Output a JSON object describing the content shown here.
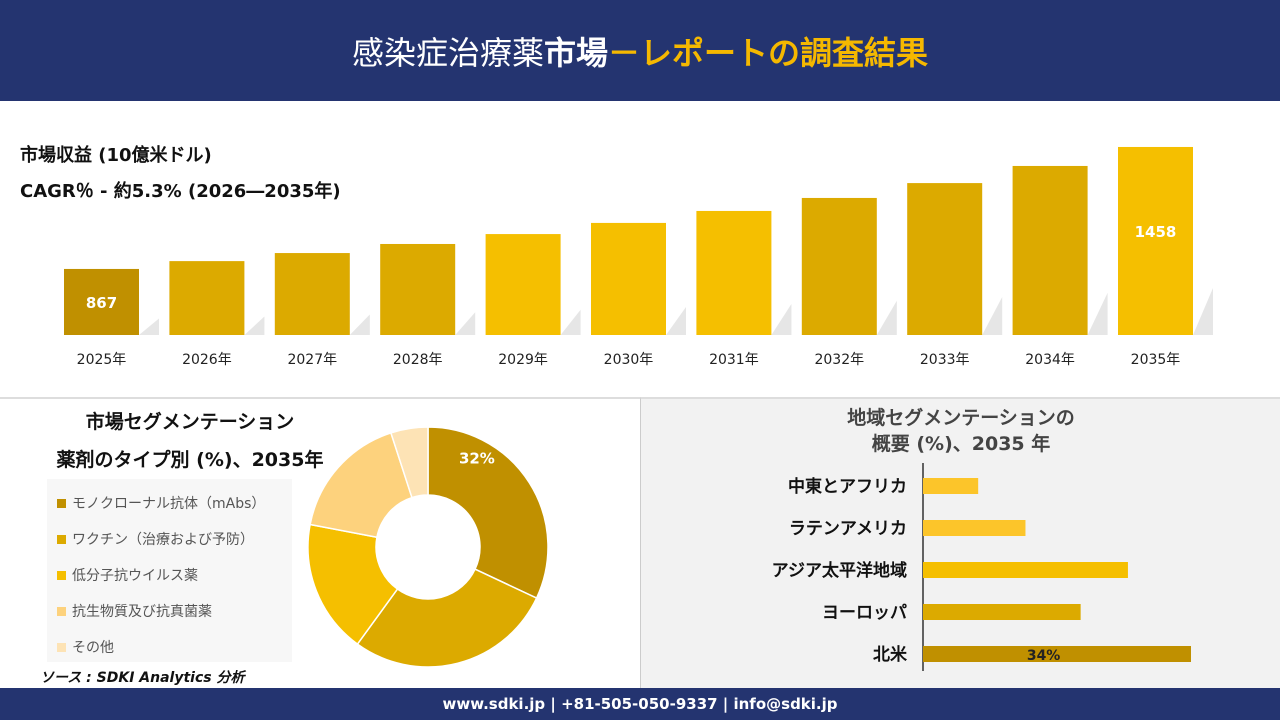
{
  "header": {
    "title_a": "感染症治療薬",
    "title_b": "市場",
    "title_c": "－レポートの調査結果"
  },
  "colors": {
    "navy": "#243470",
    "accent": "#f5b800",
    "dark_gold": "#c09000",
    "gold": "#dcaa00",
    "yellow": "#f5bf00",
    "light": "#fdd27d",
    "lightest": "#fde3b5"
  },
  "chart_data": [
    {
      "type": "bar",
      "title": "市場収益 (10億米ドル)",
      "subtitle": "CAGR％ - 約5.3% (2026―2035年)",
      "categories": [
        "2025年",
        "2026年",
        "2027年",
        "2028年",
        "2029年",
        "2030年",
        "2031年",
        "2032年",
        "2033年",
        "2034年",
        "2035年"
      ],
      "values": [
        867,
        905,
        944,
        988,
        1036,
        1090,
        1148,
        1211,
        1283,
        1366,
        1458
      ],
      "data_labels": {
        "0": "867",
        "10": "1458"
      }
    },
    {
      "type": "pie",
      "title_line1": "市場セグメンテーション",
      "title_line2": "薬剤のタイプ別 (%)、2035年",
      "categories": [
        "モノクローナル抗体（mAbs）",
        "ワクチン（治療および予防）",
        "低分子抗ウイルス薬",
        "抗生物質及び抗真菌薬",
        "その他"
      ],
      "values": [
        32,
        28,
        18,
        17,
        5
      ],
      "data_labels": {
        "0": "32%"
      },
      "legend": "left"
    },
    {
      "type": "bar",
      "orientation": "horizontal",
      "title_line1": "地域セグメンテーションの",
      "title_line2": "概要 (%)、2035 年",
      "categories": [
        "中東とアフリカ",
        "ラテンアメリカ",
        "アジア太平洋地域",
        "ヨーロッパ",
        "北米"
      ],
      "values": [
        7,
        13,
        26,
        20,
        34
      ],
      "data_labels": {
        "4": "34%"
      }
    }
  ],
  "source": "ソース : SDKI Analytics 分析",
  "footer": "www.sdki.jp | +81-505-050-9337 | info@sdki.jp"
}
